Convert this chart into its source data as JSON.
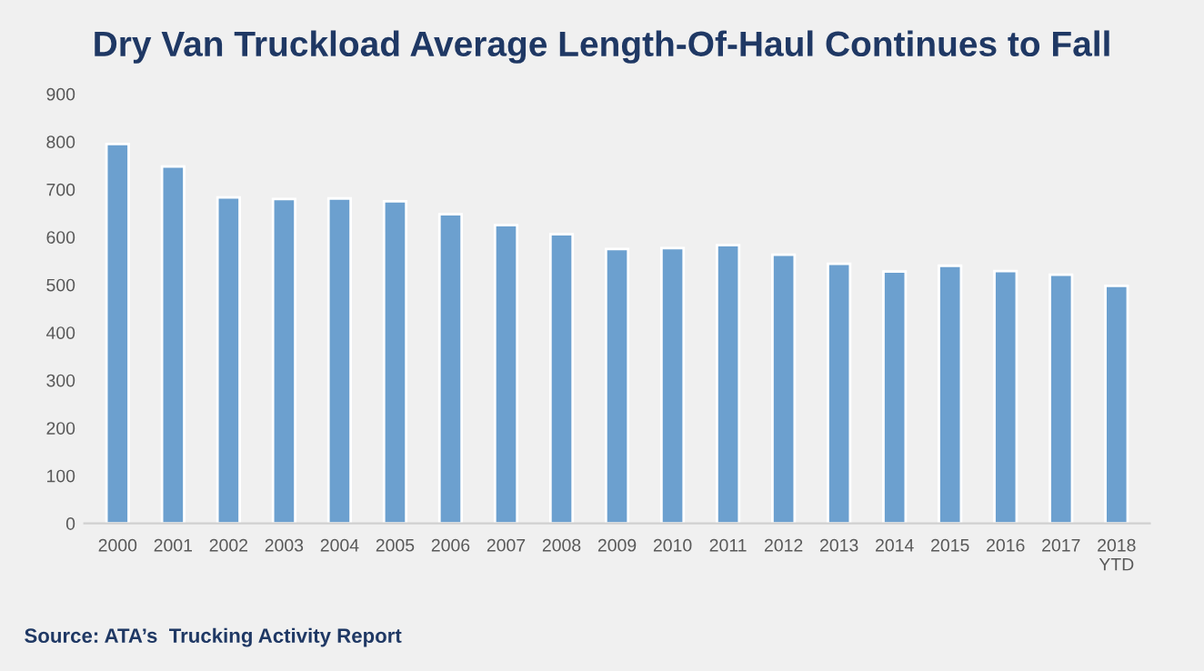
{
  "chart_data": {
    "type": "bar",
    "title": "Dry Van Truckload Average Length-Of-Haul Continues to Fall",
    "categories": [
      "2000",
      "2001",
      "2002",
      "2003",
      "2004",
      "2005",
      "2006",
      "2007",
      "2008",
      "2009",
      "2010",
      "2011",
      "2012",
      "2013",
      "2014",
      "2015",
      "2016",
      "2017",
      "2018\nYTD"
    ],
    "values": [
      795,
      748,
      683,
      680,
      681,
      675,
      648,
      625,
      606,
      575,
      577,
      583,
      563,
      544,
      528,
      540,
      529,
      521,
      498
    ],
    "color": "#6ca0cf",
    "ylim": [
      0,
      900
    ],
    "yticks": [
      0,
      100,
      200,
      300,
      400,
      500,
      600,
      700,
      800,
      900
    ],
    "grid": false,
    "annotations": [
      "Source: ATA’s  Trucking Activity Report"
    ]
  }
}
